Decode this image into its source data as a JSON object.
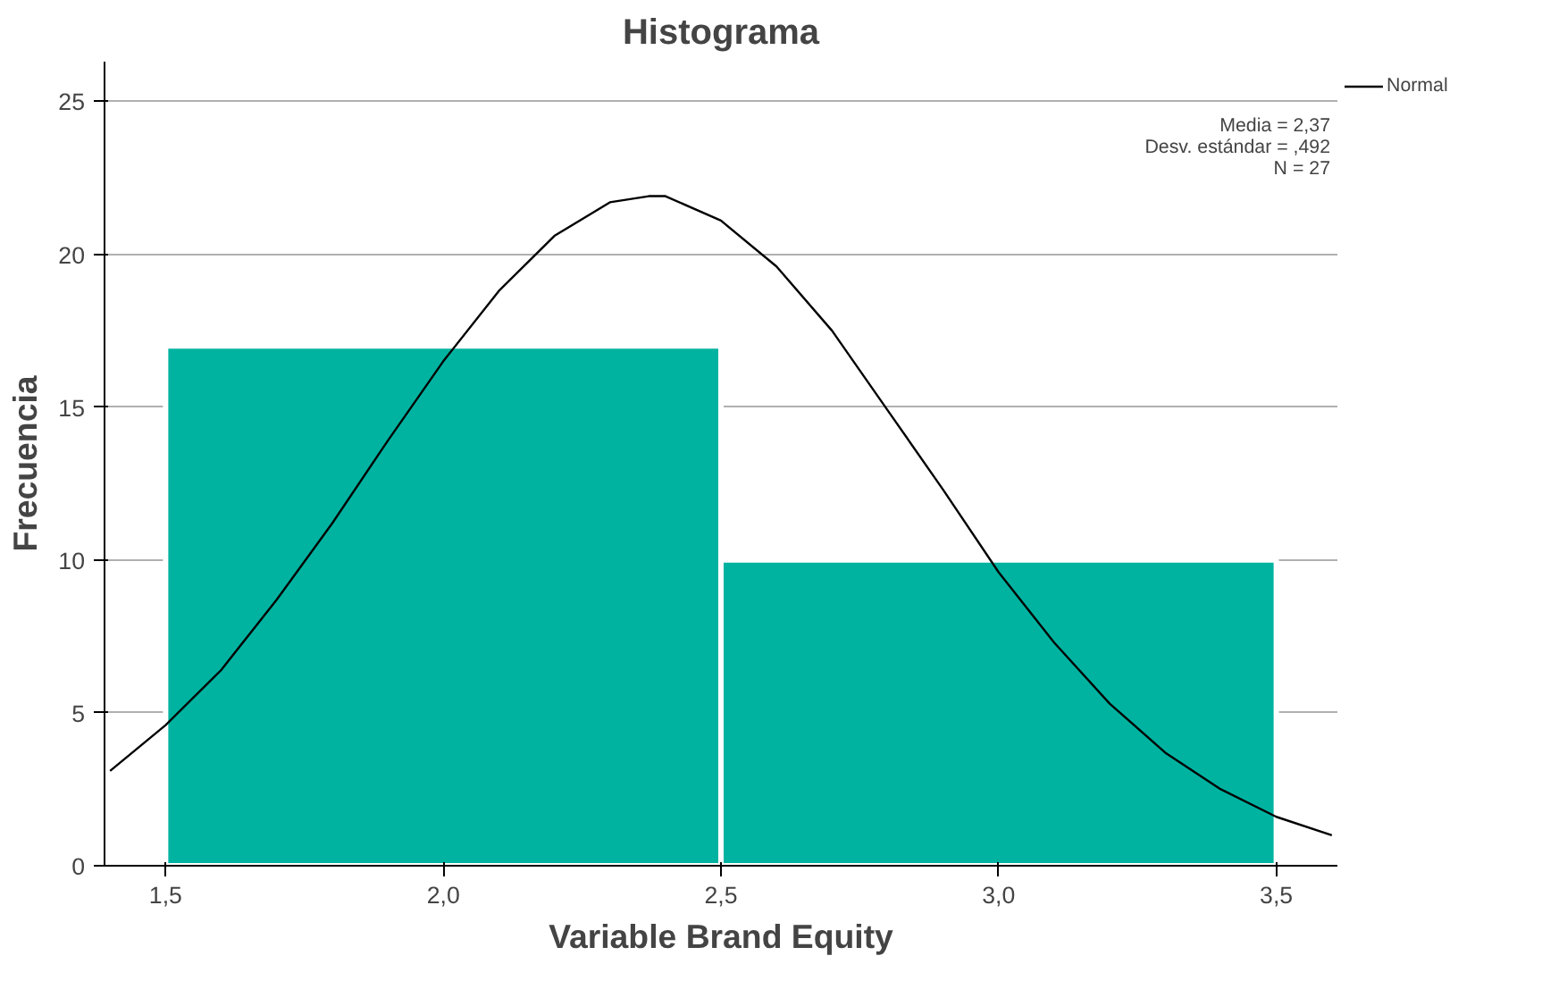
{
  "chart_data": {
    "type": "histogram",
    "title": "Histograma",
    "xlabel": "Variable Brand Equity",
    "ylabel": "Frecuencia",
    "bins": [
      1.5,
      2.5,
      3.5
    ],
    "values": [
      17,
      10
    ],
    "color": "#00b3a1",
    "series": [
      {
        "type": "line",
        "name": "Normal",
        "color": "#000000",
        "x": [
          1.4,
          1.5,
          1.6,
          1.7,
          1.8,
          1.9,
          2.0,
          2.1,
          2.2,
          2.3,
          2.37,
          2.4,
          2.5,
          2.6,
          2.7,
          2.8,
          2.9,
          3.0,
          3.1,
          3.2,
          3.3,
          3.4,
          3.5,
          3.6
        ],
        "values": [
          3.1,
          4.6,
          6.4,
          8.7,
          11.2,
          13.9,
          16.5,
          18.8,
          20.6,
          21.7,
          21.9,
          21.9,
          21.1,
          19.6,
          17.5,
          14.9,
          12.3,
          9.6,
          7.3,
          5.3,
          3.7,
          2.5,
          1.6,
          1.0
        ]
      }
    ],
    "xlim": [
      1.39,
      3.61
    ],
    "ylim": [
      0,
      26.3
    ],
    "xticks": [
      {
        "value": 1.5,
        "label": "1,5"
      },
      {
        "value": 2.0,
        "label": "2,0"
      },
      {
        "value": 2.5,
        "label": "2,5"
      },
      {
        "value": 3.0,
        "label": "3,0"
      },
      {
        "value": 3.5,
        "label": "3,5"
      }
    ],
    "yticks": [
      0,
      5,
      10,
      15,
      20,
      25
    ],
    "grid": "y",
    "legend": "top right",
    "line_style": "solid",
    "marker": "none",
    "annotations": [
      "Media = 2,37",
      "Desv. estándar = ,492",
      "N = 27"
    ]
  }
}
